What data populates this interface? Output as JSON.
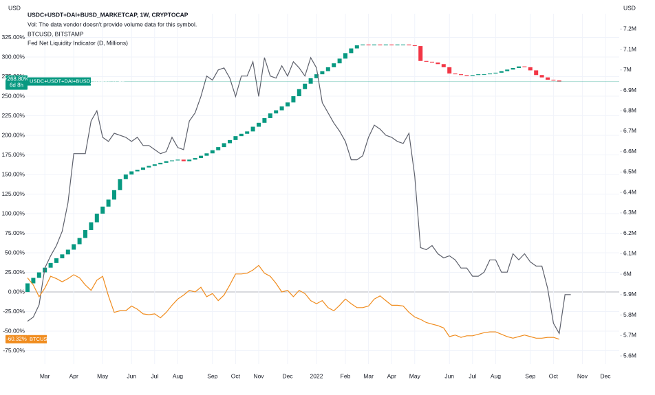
{
  "chart_data": {
    "type": "candlestick",
    "y_unit": "USD",
    "y2_unit": "USD",
    "legend": [
      "USDC+USDT+DAI+BUSD_MARKETCAP, 1W, CRYPTOCAP",
      "Vol: The data vendor doesn't provide volume data for this symbol.",
      "BTCUSD, BITSTAMP"
    ],
    "grid": true,
    "categories": [
      null,
      null,
      null,
      "Mar",
      null,
      null,
      null,
      null,
      "Apr",
      null,
      null,
      null,
      null,
      "May",
      null,
      null,
      null,
      null,
      "Jun",
      null,
      null,
      null,
      "Jul",
      null,
      null,
      null,
      "Aug",
      null,
      null,
      null,
      null,
      null,
      "Sep",
      null,
      null,
      null,
      "Oct",
      null,
      null,
      null,
      "Nov",
      null,
      null,
      null,
      null,
      "Dec",
      null,
      null,
      null,
      null,
      "2022",
      null,
      null,
      null,
      null,
      "Feb",
      null,
      null,
      null,
      "Mar",
      null,
      null,
      null,
      "Apr",
      null,
      null,
      null,
      "May",
      null,
      null,
      null,
      null,
      null,
      "Jun",
      null,
      null,
      null,
      "Jul",
      null,
      null,
      null,
      "Aug",
      null,
      null,
      null,
      null,
      null,
      "Sep",
      null,
      null,
      null,
      "Oct",
      null,
      null,
      null,
      null,
      "Nov",
      null,
      null,
      null,
      "Dec",
      null,
      null,
      null,
      null
    ],
    "ylim": [
      -92.1,
      355.3
    ],
    "yticks": [
      {
        "value": -75,
        "label": "-75.00%"
      },
      {
        "value": -50,
        "label": "-50.00%"
      },
      {
        "value": -25,
        "label": "-25.00%"
      },
      {
        "value": 0,
        "label": "0.00%"
      },
      {
        "value": 25,
        "label": "25.00%"
      },
      {
        "value": 50,
        "label": "50.00%"
      },
      {
        "value": 75,
        "label": "75.00%"
      },
      {
        "value": 100,
        "label": "100.00%"
      },
      {
        "value": 125,
        "label": "125.00%"
      },
      {
        "value": 150,
        "label": "150.00%"
      },
      {
        "value": 175,
        "label": "175.00%"
      },
      {
        "value": 200,
        "label": "200.00%"
      },
      {
        "value": 225,
        "label": "225.00%"
      },
      {
        "value": 250,
        "label": "250.00%"
      },
      {
        "value": 275,
        "label": "275.00%"
      },
      {
        "value": 300,
        "label": "300.00%"
      },
      {
        "value": 325,
        "label": "325.00%"
      }
    ],
    "y2lim": [
      5560000,
      7275000
    ],
    "y2ticks": [
      {
        "value": 5600000,
        "label": "5.6M"
      },
      {
        "value": 5700000,
        "label": "5.7M"
      },
      {
        "value": 5800000,
        "label": "5.8M"
      },
      {
        "value": 5900000,
        "label": "5.9M"
      },
      {
        "value": 6000000,
        "label": "6M"
      },
      {
        "value": 6100000,
        "label": "6.1M"
      },
      {
        "value": 6200000,
        "label": "6.2M"
      },
      {
        "value": 6300000,
        "label": "6.3M"
      },
      {
        "value": 6400000,
        "label": "6.4M"
      },
      {
        "value": 6500000,
        "label": "6.5M"
      },
      {
        "value": 6600000,
        "label": "6.6M"
      },
      {
        "value": 6700000,
        "label": "6.7M"
      },
      {
        "value": 6800000,
        "label": "6.8M"
      },
      {
        "value": 6900000,
        "label": "6.9M"
      },
      {
        "value": 7000000,
        "label": "7M"
      },
      {
        "value": 7100000,
        "label": "7.1M"
      },
      {
        "value": 7200000,
        "label": "7.2M"
      }
    ],
    "series": [
      {
        "name": "USDC+USDT+DAI+BUSD_MARKETCAP",
        "type": "candlestick",
        "up_color": "#089981",
        "down_color": "#f23645",
        "last_label": {
          "value": 268.8,
          "label": "+268.80%"
        },
        "countdown": "6d 8h",
        "values": [
          11,
          18,
          25,
          31,
          37,
          43,
          48,
          54,
          61,
          69,
          79,
          89,
          100,
          109,
          118,
          130,
          144,
          150,
          154,
          156,
          159,
          161,
          163,
          165,
          167,
          168,
          169,
          167,
          169,
          171,
          174,
          177,
          181,
          185,
          190,
          194,
          199,
          202,
          205,
          211,
          216,
          222,
          228,
          232,
          237,
          242,
          250,
          259,
          266,
          273,
          278,
          282,
          287,
          292,
          298,
          305,
          311,
          315,
          316,
          315,
          316,
          315,
          316,
          315,
          316,
          316,
          315,
          314,
          295,
          294,
          293,
          291,
          287,
          279,
          278,
          277,
          276,
          277,
          278,
          278,
          279,
          280,
          282,
          284,
          286,
          288,
          287,
          283,
          277,
          274,
          271,
          270,
          268.8,
          null,
          null,
          null,
          null,
          null,
          null,
          null,
          null,
          null,
          null,
          null,
          null
        ]
      },
      {
        "name": "BTCUSD",
        "type": "line",
        "color": "#f08c1e",
        "last_label": {
          "value": -60.32,
          "label": "-60.32%"
        },
        "values": [
          18,
          9,
          -6,
          5,
          20,
          17,
          13,
          17,
          22,
          18,
          9,
          2,
          15,
          20,
          -5,
          -26,
          -24,
          -24,
          -18,
          -22,
          -28,
          -29,
          -28,
          -33,
          -26,
          -17,
          -9,
          -4,
          2,
          0,
          6,
          -6,
          -2,
          -11,
          -4,
          9,
          23,
          23,
          24,
          28,
          34,
          24,
          20,
          11,
          0,
          2,
          -6,
          2,
          -2,
          -11,
          -15,
          -11,
          -20,
          -24,
          -17,
          -9,
          -15,
          -20,
          -20,
          -18,
          -9,
          -5,
          -11,
          -17,
          -17,
          -18,
          -26,
          -32,
          -35,
          -39,
          -41,
          -43,
          -46,
          -57,
          -55,
          -58,
          -56,
          -56,
          -54,
          -52,
          -51,
          -51,
          -54,
          -57,
          -59,
          -57,
          -55,
          -57,
          -59,
          -59,
          -58,
          -58,
          -60.32,
          null,
          null,
          null,
          null,
          null,
          null,
          null,
          null,
          null,
          null,
          null,
          null
        ]
      },
      {
        "name": "Fed Net Liquidity Indicator (D, Millions)",
        "type": "line",
        "axis": "y2",
        "color": "#5d606b",
        "values": [
          5770000,
          5790000,
          5850000,
          6030000,
          6090000,
          6140000,
          6210000,
          6350000,
          6590000,
          6590000,
          6590000,
          6750000,
          6800000,
          6670000,
          6650000,
          6690000,
          6680000,
          6670000,
          6650000,
          6670000,
          6630000,
          6630000,
          6610000,
          6590000,
          6600000,
          6670000,
          6620000,
          6610000,
          6750000,
          6790000,
          6870000,
          6970000,
          6950000,
          7000000,
          7010000,
          6960000,
          6870000,
          6970000,
          6970000,
          7040000,
          6870000,
          7060000,
          6970000,
          6960000,
          7020000,
          6970000,
          7040000,
          7010000,
          6970000,
          7060000,
          7010000,
          6840000,
          6790000,
          6740000,
          6700000,
          6650000,
          6560000,
          6560000,
          6580000,
          6670000,
          6730000,
          6710000,
          6680000,
          6670000,
          6650000,
          6640000,
          6690000,
          6480000,
          6130000,
          6120000,
          6140000,
          6100000,
          6080000,
          6090000,
          6070000,
          6030000,
          6030000,
          5990000,
          5990000,
          6010000,
          6070000,
          6070000,
          6010000,
          6010000,
          6100000,
          6070000,
          6100000,
          6060000,
          6040000,
          6040000,
          5930000,
          5760000,
          5710000,
          5900000,
          5900000,
          null,
          null,
          null,
          null,
          null,
          null,
          null,
          null,
          null,
          null
        ]
      }
    ]
  }
}
